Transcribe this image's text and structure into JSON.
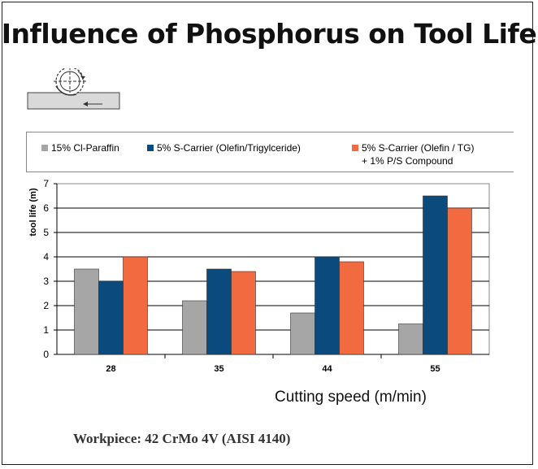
{
  "title": "Influence of Phosphorus on Tool Life",
  "legend": {
    "item1": "15% Cl-Paraffin",
    "item2": "5% S-Carrier (Olefin/Trigylceride)",
    "item3_line1": "5% S-Carrier (Olefin / TG)",
    "item3_line2": "+ 1% P/S Compound"
  },
  "x_axis_title": "Cutting speed (m/min)",
  "workpiece_label": "Workpiece: 42 CrMo  4V (AISI 4140)",
  "colors": {
    "series1": "#a6a6a6",
    "series2": "#0b4a7c",
    "series3": "#f26a3f"
  },
  "chart_data": {
    "type": "bar",
    "categories": [
      "28",
      "35",
      "44",
      "55"
    ],
    "series": [
      {
        "name": "15% Cl-Paraffin",
        "values": [
          3.5,
          2.2,
          1.7,
          1.25
        ]
      },
      {
        "name": "5% S-Carrier (Olefin/Trigylceride)",
        "values": [
          3.0,
          3.5,
          4.0,
          6.5
        ]
      },
      {
        "name": "5% S-Carrier (Olefin / TG) + 1% P/S Compound",
        "values": [
          4.0,
          3.4,
          3.8,
          6.0
        ]
      }
    ],
    "title": "Influence of Phosphorus on Tool Life",
    "xlabel": "Cutting speed (m/min)",
    "ylabel": "tool life (m)",
    "ylim": [
      0,
      7
    ],
    "yticks": [
      "0",
      "1",
      "2",
      "3",
      "4",
      "5",
      "6",
      "7"
    ],
    "grid": true
  }
}
